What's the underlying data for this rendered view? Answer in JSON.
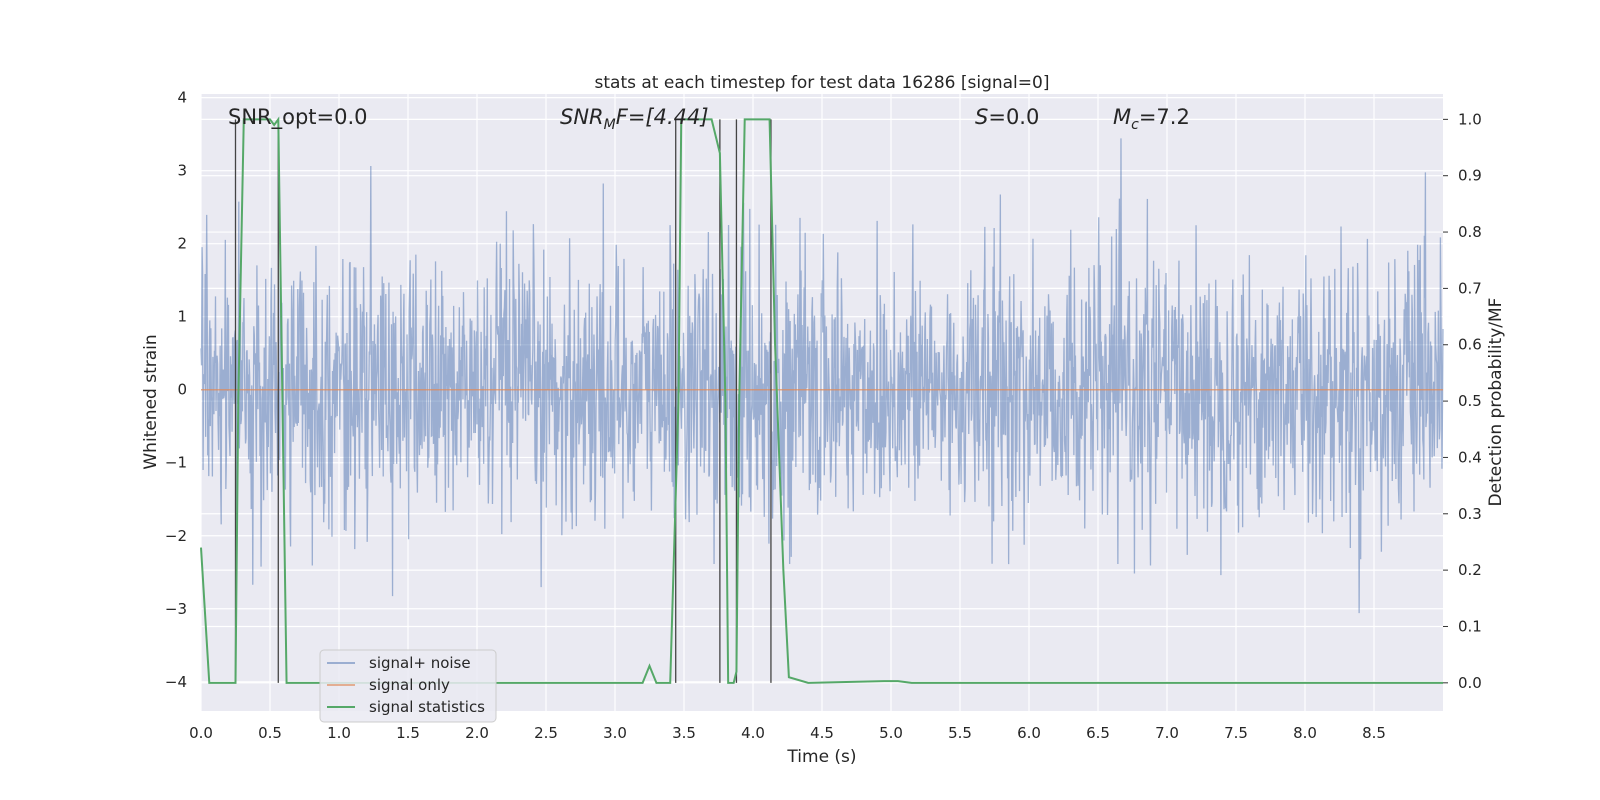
{
  "chart_data": {
    "type": "line",
    "title": "stats at each timestep for test data 16286 [signal=0]",
    "xlabel": "Time (s)",
    "ylabel": "Whitened strain",
    "y2label": "Detection probability/MF",
    "xlim": [
      0.0,
      9.0
    ],
    "ylim": [
      -4.4,
      4.05
    ],
    "y2lim": [
      -0.05,
      1.045
    ],
    "xticks": [
      "0.0",
      "0.5",
      "1.0",
      "1.5",
      "2.0",
      "2.5",
      "3.0",
      "3.5",
      "4.0",
      "4.5",
      "5.0",
      "5.5",
      "6.0",
      "6.5",
      "7.0",
      "7.5",
      "8.0",
      "8.5"
    ],
    "yticks": [
      "4",
      "3",
      "2",
      "1",
      "0",
      "−1",
      "−2",
      "−3",
      "−4"
    ],
    "y2ticks": [
      "1.0",
      "0.9",
      "0.8",
      "0.7",
      "0.6",
      "0.5",
      "0.4",
      "0.3",
      "0.2",
      "0.1",
      "0.0"
    ],
    "annotations": {
      "snr_opt": "SNR_opt=0.0",
      "snr_mf_label": "SNR",
      "snr_mf_sub": "M",
      "snr_mf_rest": "F=[4.44]",
      "s_label": "S",
      "s_rest": "=0.0",
      "mc_label": "M",
      "mc_sub": "c",
      "mc_rest": "=7.2"
    },
    "legend": {
      "position": "lower-left",
      "entries": [
        "signal+ noise",
        "signal only",
        "signal statistics"
      ]
    },
    "series": [
      {
        "name": "signal+ noise",
        "axis": "left",
        "color": "#4c72b0",
        "description": "whitened noise, approx std 0.9, spikes to about +3.6 / -3.9",
        "noise_std": 0.9
      },
      {
        "name": "signal only",
        "axis": "left",
        "color": "#dd8452",
        "x": [
          0.0,
          9.0
        ],
        "y": [
          0.0,
          0.0
        ]
      },
      {
        "name": "signal statistics",
        "axis": "right",
        "color": "#55a868",
        "x": [
          0.0,
          0.06,
          0.25,
          0.27,
          0.31,
          0.5,
          0.53,
          0.56,
          0.59,
          0.62,
          3.2,
          3.25,
          3.3,
          3.4,
          3.46,
          3.48,
          3.52,
          3.7,
          3.76,
          3.8,
          3.82,
          3.86,
          3.88,
          3.9,
          3.94,
          4.12,
          4.16,
          4.22,
          4.26,
          4.4,
          4.95,
          5.05,
          5.15,
          9.0
        ],
        "y": [
          0.24,
          0.0,
          0.0,
          0.5,
          1.0,
          1.0,
          0.99,
          1.0,
          0.5,
          0.0,
          0.0,
          0.03,
          0.0,
          0.0,
          0.5,
          1.0,
          1.0,
          1.0,
          0.94,
          0.5,
          0.0,
          0.0,
          0.02,
          0.5,
          1.0,
          1.0,
          0.6,
          0.2,
          0.01,
          0.0,
          0.003,
          0.003,
          0.0,
          0.0
        ]
      }
    ],
    "vertical_markers": {
      "color": "#444444",
      "x": [
        0.25,
        0.56,
        3.44,
        3.76,
        3.88,
        4.13
      ]
    }
  }
}
